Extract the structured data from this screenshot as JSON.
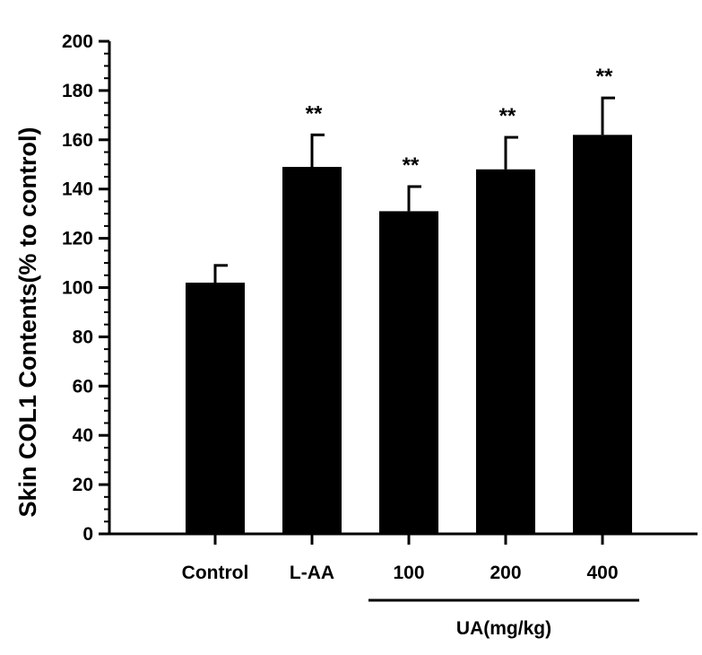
{
  "chart_data": {
    "type": "bar",
    "categories": [
      "Control",
      "L-AA",
      "100",
      "200",
      "400"
    ],
    "values": [
      102,
      149,
      131,
      148,
      162
    ],
    "errors": [
      7,
      13,
      10,
      13,
      15
    ],
    "significance": [
      "",
      "**",
      "**",
      "**",
      "**"
    ],
    "ylabel": "Skin COL1 Contents(% to control)",
    "xlabel": "",
    "ylim": [
      0,
      200
    ],
    "yticks": [
      0,
      20,
      40,
      60,
      80,
      100,
      120,
      140,
      160,
      180,
      200
    ],
    "group_label": "UA(mg/kg)",
    "group_categories": [
      "100",
      "200",
      "400"
    ],
    "bar_color": "#000000",
    "grid": false
  }
}
